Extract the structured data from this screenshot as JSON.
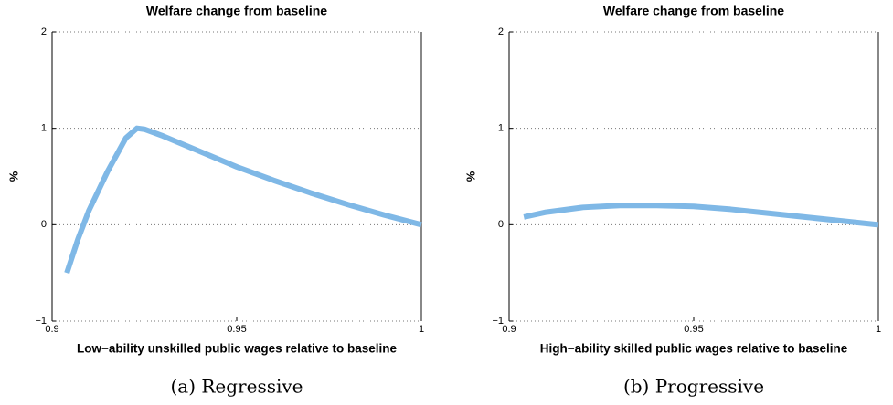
{
  "chart_data": [
    {
      "type": "line",
      "title": "Welfare change from baseline",
      "xlabel": "Low−ability unskilled public wages relative to baseline",
      "ylabel": "%",
      "caption": "(a) Regressive",
      "x": [
        0.904,
        0.907,
        0.91,
        0.915,
        0.92,
        0.923,
        0.925,
        0.93,
        0.94,
        0.95,
        0.96,
        0.97,
        0.98,
        0.99,
        1.0
      ],
      "series": [
        {
          "name": "Welfare change",
          "color": "#7fb8e6",
          "values": [
            -0.5,
            -0.15,
            0.15,
            0.55,
            0.9,
            1.0,
            0.99,
            0.92,
            0.76,
            0.6,
            0.46,
            0.33,
            0.21,
            0.1,
            0
          ]
        }
      ],
      "xlim": [
        0.9,
        1
      ],
      "xticks": [
        0.9,
        0.95,
        1
      ],
      "ylim": [
        -1,
        2
      ],
      "yticks": [
        {
          "value": -1,
          "label": "−1"
        },
        0,
        1,
        2
      ],
      "grid": true
    },
    {
      "type": "line",
      "title": "Welfare change from baseline",
      "xlabel": "High−ability skilled public wages relative to baseline",
      "ylabel": "%",
      "caption": "(b) Progressive",
      "x": [
        0.904,
        0.91,
        0.92,
        0.93,
        0.94,
        0.95,
        0.96,
        0.97,
        0.98,
        0.99,
        1.0
      ],
      "series": [
        {
          "name": "Welfare change",
          "color": "#7fb8e6",
          "values": [
            0.08,
            0.13,
            0.18,
            0.2,
            0.2,
            0.19,
            0.16,
            0.12,
            0.08,
            0.04,
            0
          ]
        }
      ],
      "xlim": [
        0.9,
        1
      ],
      "xticks": [
        0.9,
        0.95,
        1
      ],
      "ylim": [
        -1,
        2
      ],
      "yticks": [
        {
          "value": -1,
          "label": "−1"
        },
        0,
        1,
        2
      ],
      "grid": true
    }
  ]
}
